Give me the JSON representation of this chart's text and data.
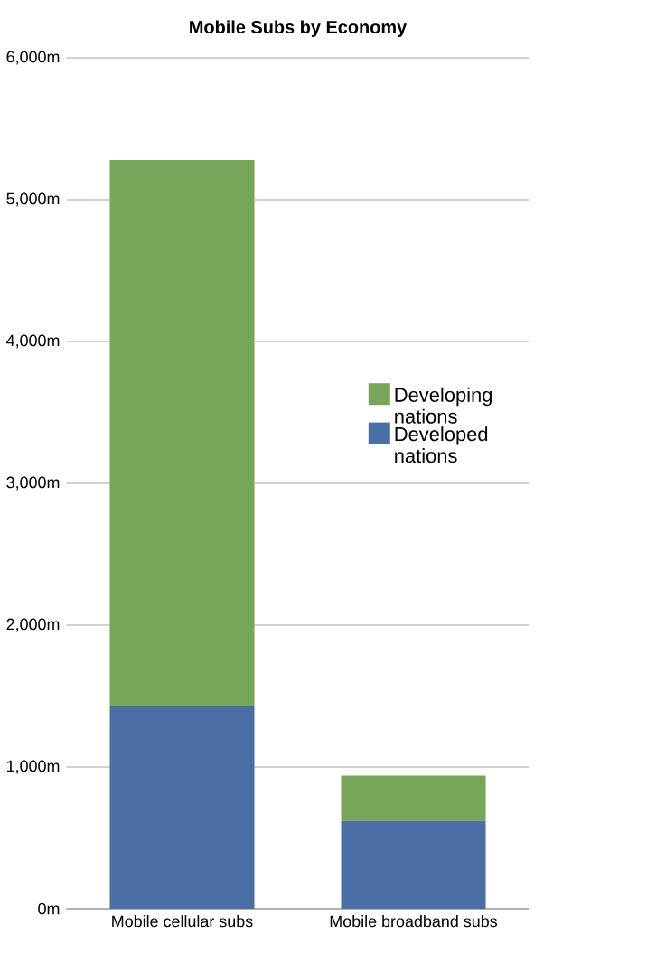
{
  "chart_data": {
    "type": "bar",
    "title": "Mobile Subs by Economy",
    "stacked": true,
    "categories": [
      "Mobile cellular subs",
      "Mobile broadband subs"
    ],
    "series": [
      {
        "name": "Developed nations",
        "color": "#4a6fa5",
        "values": [
          1430,
          620
        ]
      },
      {
        "name": "Developing nations",
        "color": "#77a55a",
        "values": [
          3850,
          320
        ]
      }
    ],
    "ylim": [
      0,
      6000
    ],
    "yticks": [
      {
        "value": 0,
        "label": "0m"
      },
      {
        "value": 1000,
        "label": "1,000m"
      },
      {
        "value": 2000,
        "label": "2,000m"
      },
      {
        "value": 3000,
        "label": "3,000m"
      },
      {
        "value": 4000,
        "label": "4,000m"
      },
      {
        "value": 5000,
        "label": "5,000m"
      },
      {
        "value": 6000,
        "label": "6,000m"
      }
    ],
    "grid": "y",
    "legend": "right"
  }
}
